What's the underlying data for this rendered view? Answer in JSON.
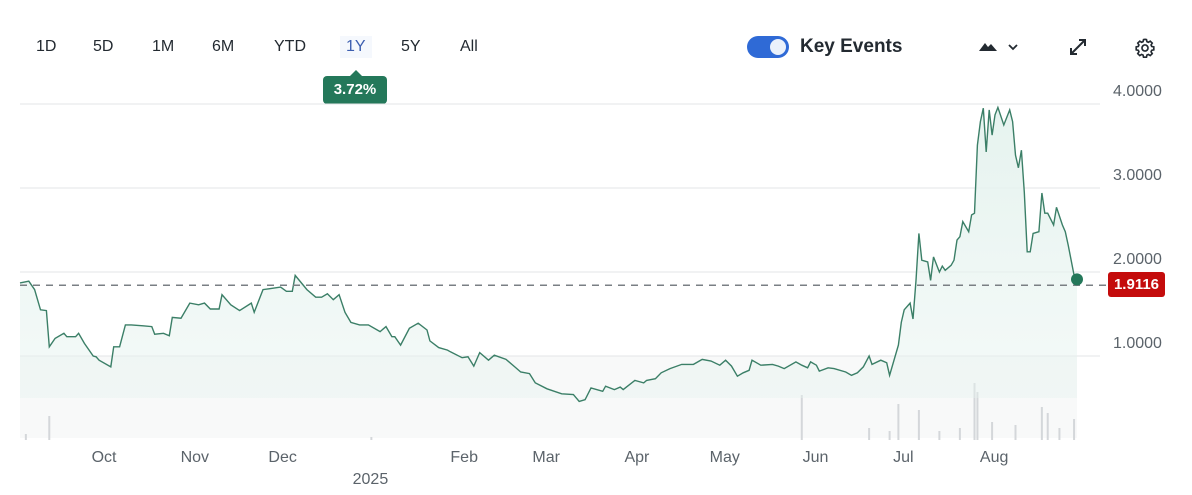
{
  "toolbar": {
    "ranges": [
      "1D",
      "5D",
      "1M",
      "6M",
      "YTD",
      "1Y",
      "5Y",
      "All"
    ],
    "active_range": "1Y",
    "change_badge": "3.72%",
    "key_events_label": "Key Events",
    "key_events_on": true,
    "icons": [
      "mountain-chart-type-icon",
      "chevron-down-icon",
      "expand-icon",
      "gear-icon"
    ]
  },
  "colors": {
    "line": "#3b7f67",
    "fill": "#e6f3ef",
    "badge": "#24785a",
    "price_tag": "#c40c0c",
    "toggle": "#2f6ad6",
    "accent": "#3d5fb0"
  },
  "chart_data": {
    "type": "area",
    "title": "",
    "xlabel": "",
    "ylabel": "",
    "ylim": [
      0,
      4.2
    ],
    "y_ticks": [
      "4.0000",
      "3.0000",
      "2.0000",
      "1.0000"
    ],
    "y_tick_values": [
      4,
      3,
      2,
      1
    ],
    "x_ticks": [
      [
        "2024-10-01",
        "Oct"
      ],
      [
        "2024-11-01",
        "Nov"
      ],
      [
        "2024-12-01",
        "Dec"
      ],
      [
        "2025-02-01",
        "Feb"
      ],
      [
        "2025-03-01",
        "Mar"
      ],
      [
        "2025-04-01",
        "Apr"
      ],
      [
        "2025-05-01",
        "May"
      ],
      [
        "2025-06-01",
        "Jun"
      ],
      [
        "2025-07-01",
        "Jul"
      ],
      [
        "2025-08-01",
        "Aug"
      ]
    ],
    "year_label": [
      "2025-01-01",
      "2025"
    ],
    "grid": true,
    "reference_line": 1.843,
    "last_price": "1.9116",
    "series": [
      {
        "points": [
          [
            "2024-09-04",
            1.87
          ],
          [
            "2024-09-07",
            1.89
          ],
          [
            "2024-09-09",
            1.79
          ],
          [
            "2024-09-11",
            1.55
          ],
          [
            "2024-09-13",
            1.54
          ],
          [
            "2024-09-14",
            1.11
          ],
          [
            "2024-09-16",
            1.21
          ],
          [
            "2024-09-19",
            1.27
          ],
          [
            "2024-09-20",
            1.23
          ],
          [
            "2024-09-23",
            1.23
          ],
          [
            "2024-09-24",
            1.27
          ],
          [
            "2024-09-26",
            1.15
          ],
          [
            "2024-09-29",
            1.0
          ],
          [
            "2024-09-30",
            0.99
          ],
          [
            "2024-10-01",
            0.95
          ],
          [
            "2024-10-05",
            0.87
          ],
          [
            "2024-10-06",
            1.11
          ],
          [
            "2024-10-08",
            1.11
          ],
          [
            "2024-10-10",
            1.37
          ],
          [
            "2024-10-12",
            1.37
          ],
          [
            "2024-10-16",
            1.36
          ],
          [
            "2024-10-19",
            1.35
          ],
          [
            "2024-10-20",
            1.26
          ],
          [
            "2024-10-23",
            1.27
          ],
          [
            "2024-10-25",
            1.24
          ],
          [
            "2024-10-26",
            1.46
          ],
          [
            "2024-10-29",
            1.45
          ],
          [
            "2024-11-01",
            1.63
          ],
          [
            "2024-11-04",
            1.61
          ],
          [
            "2024-11-06",
            1.63
          ],
          [
            "2024-11-08",
            1.56
          ],
          [
            "2024-11-11",
            1.56
          ],
          [
            "2024-11-12",
            1.73
          ],
          [
            "2024-11-15",
            1.61
          ],
          [
            "2024-11-18",
            1.54
          ],
          [
            "2024-11-22",
            1.63
          ],
          [
            "2024-11-23",
            1.52
          ],
          [
            "2024-11-26",
            1.79
          ],
          [
            "2024-11-28",
            1.8
          ],
          [
            "2024-12-02",
            1.82
          ],
          [
            "2024-12-04",
            1.77
          ],
          [
            "2024-12-06",
            1.77
          ],
          [
            "2024-12-07",
            1.96
          ],
          [
            "2024-12-11",
            1.79
          ],
          [
            "2024-12-14",
            1.7
          ],
          [
            "2024-12-16",
            1.7
          ],
          [
            "2024-12-18",
            1.74
          ],
          [
            "2024-12-20",
            1.67
          ],
          [
            "2024-12-22",
            1.73
          ],
          [
            "2024-12-24",
            1.52
          ],
          [
            "2024-12-26",
            1.4
          ],
          [
            "2024-12-29",
            1.37
          ],
          [
            "2025-01-01",
            1.37
          ],
          [
            "2025-01-05",
            1.29
          ],
          [
            "2025-01-07",
            1.35
          ],
          [
            "2025-01-09",
            1.23
          ],
          [
            "2025-01-10",
            1.23
          ],
          [
            "2025-01-12",
            1.13
          ],
          [
            "2025-01-15",
            1.33
          ],
          [
            "2025-01-18",
            1.39
          ],
          [
            "2025-01-21",
            1.31
          ],
          [
            "2025-01-22",
            1.18
          ],
          [
            "2025-01-25",
            1.1
          ],
          [
            "2025-01-28",
            1.07
          ],
          [
            "2025-01-29",
            1.05
          ],
          [
            "2025-02-02",
            0.98
          ],
          [
            "2025-02-04",
            0.99
          ],
          [
            "2025-02-06",
            0.88
          ],
          [
            "2025-02-08",
            1.04
          ],
          [
            "2025-02-11",
            0.95
          ],
          [
            "2025-02-13",
            1.01
          ],
          [
            "2025-02-17",
            0.96
          ],
          [
            "2025-02-20",
            0.87
          ],
          [
            "2025-02-22",
            0.81
          ],
          [
            "2025-02-25",
            0.79
          ],
          [
            "2025-02-27",
            0.68
          ],
          [
            "2025-03-03",
            0.61
          ],
          [
            "2025-03-08",
            0.55
          ],
          [
            "2025-03-12",
            0.54
          ],
          [
            "2025-03-14",
            0.46
          ],
          [
            "2025-03-16",
            0.48
          ],
          [
            "2025-03-18",
            0.62
          ],
          [
            "2025-03-22",
            0.58
          ],
          [
            "2025-03-23",
            0.64
          ],
          [
            "2025-03-26",
            0.6
          ],
          [
            "2025-03-28",
            0.63
          ],
          [
            "2025-03-29",
            0.6
          ],
          [
            "2025-04-02",
            0.71
          ],
          [
            "2025-04-05",
            0.68
          ],
          [
            "2025-04-06",
            0.71
          ],
          [
            "2025-04-09",
            0.73
          ],
          [
            "2025-04-11",
            0.8
          ],
          [
            "2025-04-14",
            0.85
          ],
          [
            "2025-04-18",
            0.9
          ],
          [
            "2025-04-22",
            0.9
          ],
          [
            "2025-04-25",
            0.96
          ],
          [
            "2025-04-28",
            0.94
          ],
          [
            "2025-05-01",
            0.89
          ],
          [
            "2025-05-03",
            0.95
          ],
          [
            "2025-05-05",
            0.88
          ],
          [
            "2025-05-07",
            0.76
          ],
          [
            "2025-05-09",
            0.8
          ],
          [
            "2025-05-11",
            0.83
          ],
          [
            "2025-05-12",
            0.95
          ],
          [
            "2025-05-15",
            0.89
          ],
          [
            "2025-05-19",
            0.9
          ],
          [
            "2025-05-21",
            0.88
          ],
          [
            "2025-05-23",
            0.85
          ],
          [
            "2025-05-27",
            0.93
          ],
          [
            "2025-05-29",
            0.89
          ],
          [
            "2025-05-31",
            0.86
          ],
          [
            "2025-06-01",
            0.93
          ],
          [
            "2025-06-03",
            0.89
          ],
          [
            "2025-06-04",
            0.82
          ],
          [
            "2025-06-07",
            0.86
          ],
          [
            "2025-06-09",
            0.85
          ],
          [
            "2025-06-13",
            0.81
          ],
          [
            "2025-06-15",
            0.77
          ],
          [
            "2025-06-17",
            0.8
          ],
          [
            "2025-06-19",
            0.87
          ],
          [
            "2025-06-21",
            1.0
          ],
          [
            "2025-06-22",
            0.9
          ],
          [
            "2025-06-25",
            0.95
          ],
          [
            "2025-06-27",
            0.92
          ],
          [
            "2025-06-28",
            0.77
          ],
          [
            "2025-07-01",
            1.13
          ],
          [
            "2025-07-02",
            1.4
          ],
          [
            "2025-07-03",
            1.55
          ],
          [
            "2025-07-05",
            1.63
          ],
          [
            "2025-07-06",
            1.44
          ],
          [
            "2025-07-07",
            1.9
          ],
          [
            "2025-07-08",
            2.46
          ],
          [
            "2025-07-09",
            2.14
          ],
          [
            "2025-07-11",
            2.12
          ],
          [
            "2025-07-12",
            1.9
          ],
          [
            "2025-07-13",
            2.18
          ],
          [
            "2025-07-15",
            2.0
          ],
          [
            "2025-07-16",
            2.07
          ],
          [
            "2025-07-17",
            2.02
          ],
          [
            "2025-07-19",
            2.08
          ],
          [
            "2025-07-20",
            2.14
          ],
          [
            "2025-07-21",
            2.38
          ],
          [
            "2025-07-22",
            2.42
          ],
          [
            "2025-07-23",
            2.6
          ],
          [
            "2025-07-25",
            2.48
          ],
          [
            "2025-07-26",
            2.68
          ],
          [
            "2025-07-27",
            2.7
          ],
          [
            "2025-07-28",
            3.51
          ],
          [
            "2025-07-29",
            3.79
          ],
          [
            "2025-07-30",
            3.95
          ],
          [
            "2025-07-31",
            3.43
          ],
          [
            "2025-08-01",
            3.93
          ],
          [
            "2025-08-02",
            3.63
          ],
          [
            "2025-08-03",
            3.87
          ],
          [
            "2025-08-04",
            3.96
          ],
          [
            "2025-08-06",
            3.75
          ],
          [
            "2025-08-08",
            3.93
          ],
          [
            "2025-08-09",
            3.79
          ],
          [
            "2025-08-10",
            3.39
          ],
          [
            "2025-08-11",
            3.24
          ],
          [
            "2025-08-12",
            3.45
          ],
          [
            "2025-08-13",
            2.95
          ],
          [
            "2025-08-14",
            2.24
          ],
          [
            "2025-08-15",
            2.24
          ],
          [
            "2025-08-16",
            2.46
          ],
          [
            "2025-08-18",
            2.48
          ],
          [
            "2025-08-19",
            2.94
          ],
          [
            "2025-08-20",
            2.7
          ],
          [
            "2025-08-21",
            2.7
          ],
          [
            "2025-08-23",
            2.56
          ],
          [
            "2025-08-24",
            2.77
          ],
          [
            "2025-08-26",
            2.56
          ],
          [
            "2025-08-27",
            2.48
          ],
          [
            "2025-08-28",
            2.32
          ],
          [
            "2025-08-30",
            1.96
          ],
          [
            "2025-08-31",
            1.9116
          ]
        ]
      }
    ],
    "volume_relative": [
      [
        "2024-09-14",
        0.4
      ],
      [
        "2024-09-06",
        0.1
      ],
      [
        "2025-01-02",
        0.05
      ],
      [
        "2025-05-29",
        0.75
      ],
      [
        "2025-06-21",
        0.2
      ],
      [
        "2025-06-28",
        0.15
      ],
      [
        "2025-07-01",
        0.6
      ],
      [
        "2025-07-08",
        0.5
      ],
      [
        "2025-07-15",
        0.15
      ],
      [
        "2025-07-22",
        0.2
      ],
      [
        "2025-07-27",
        0.95
      ],
      [
        "2025-07-28",
        0.8
      ],
      [
        "2025-08-02",
        0.3
      ],
      [
        "2025-08-10",
        0.25
      ],
      [
        "2025-08-19",
        0.55
      ],
      [
        "2025-08-21",
        0.45
      ],
      [
        "2025-08-25",
        0.2
      ],
      [
        "2025-08-30",
        0.35
      ]
    ]
  }
}
